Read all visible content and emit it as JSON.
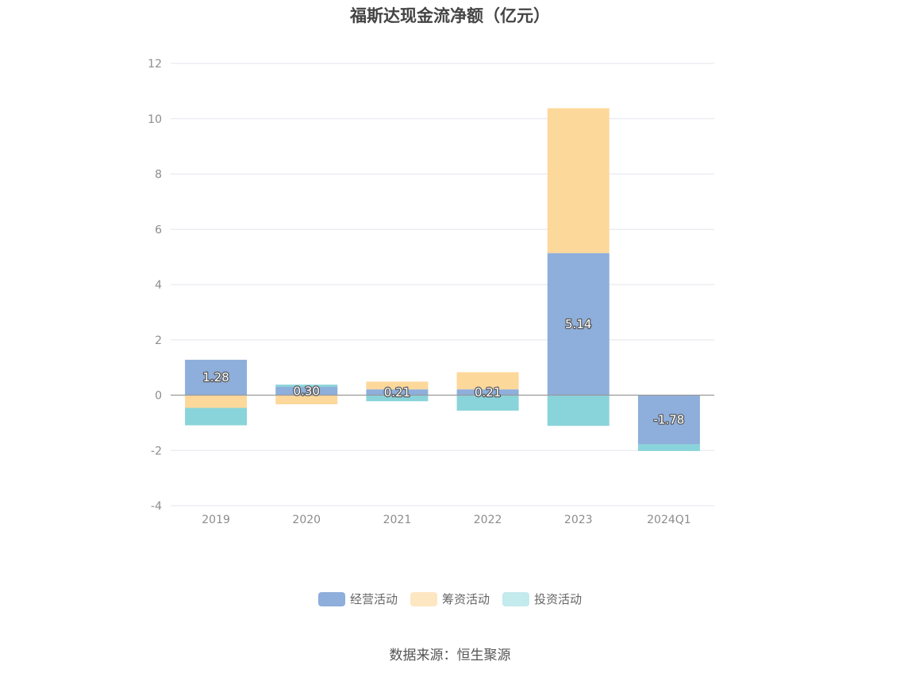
{
  "chart_data": {
    "type": "bar",
    "stacked": true,
    "title": "福斯达现金流净额（亿元）",
    "categories": [
      "2019",
      "2020",
      "2021",
      "2022",
      "2023",
      "2024Q1"
    ],
    "series": [
      {
        "name": "经营活动",
        "values": [
          1.28,
          0.3,
          0.21,
          0.21,
          5.14,
          -1.78
        ],
        "color": "#8eaedb",
        "legend_color": "#8eaedb"
      },
      {
        "name": "筹资活动",
        "values": [
          -0.46,
          -0.33,
          0.28,
          0.62,
          5.24,
          0.0
        ],
        "color": "#fdd89b",
        "legend_color": "#fde6c2"
      },
      {
        "name": "投资活动",
        "values": [
          -0.63,
          0.08,
          -0.22,
          -0.56,
          -1.11,
          -0.24
        ],
        "color": "#89d4da",
        "legend_color": "#c3eaec"
      }
    ],
    "data_labels": [
      "1.28",
      "0.30",
      "0.21",
      "0.21",
      "5.14",
      "-1.78"
    ],
    "yticks": [
      "12",
      "10",
      "8",
      "6",
      "4",
      "2",
      "0",
      "-2",
      "-4"
    ],
    "ylim": [
      -4,
      12
    ],
    "grid": true,
    "legend_position": "bottom-center"
  },
  "source": "数据来源：恒生聚源"
}
